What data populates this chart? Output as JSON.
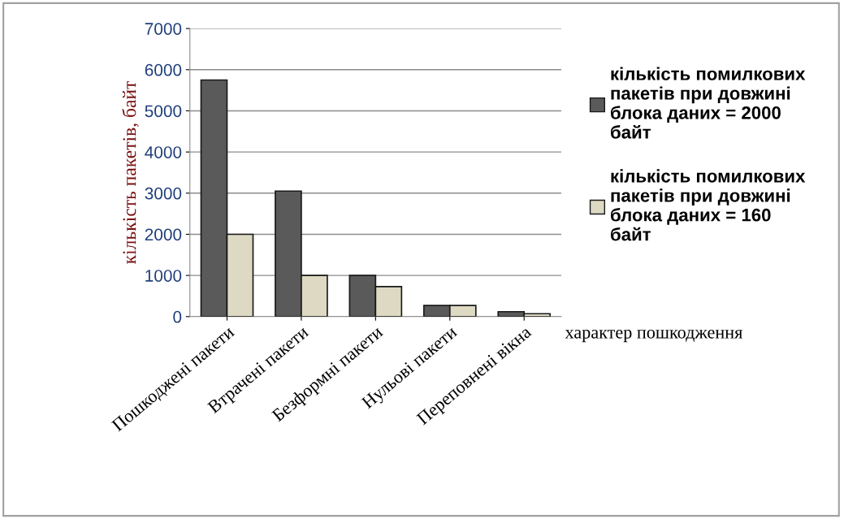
{
  "chart_data": {
    "type": "bar",
    "xlabel": "характер пошкодження",
    "ylabel": "кількість пакетів, байт",
    "categories": [
      "Пошкоджені пакети",
      "Втрачені пакети",
      "Безформні пакети",
      "Нульові пакети",
      "Переповнені вікна"
    ],
    "series": [
      {
        "name": "кількість помилкових пакетів при довжині блока даних = 2000 байт",
        "color": "#5a5a5a",
        "values": [
          5750,
          3050,
          1000,
          270,
          120
        ]
      },
      {
        "name": "кількість помилкових пакетів при довжині блока даних = 160 байт",
        "color": "#ddd9c3",
        "values": [
          2000,
          1000,
          730,
          270,
          70
        ]
      }
    ],
    "ylim": [
      0,
      7000
    ],
    "yticks": [
      0,
      1000,
      2000,
      3000,
      4000,
      5000,
      6000,
      7000
    ],
    "grid": "y",
    "legend": "right"
  }
}
